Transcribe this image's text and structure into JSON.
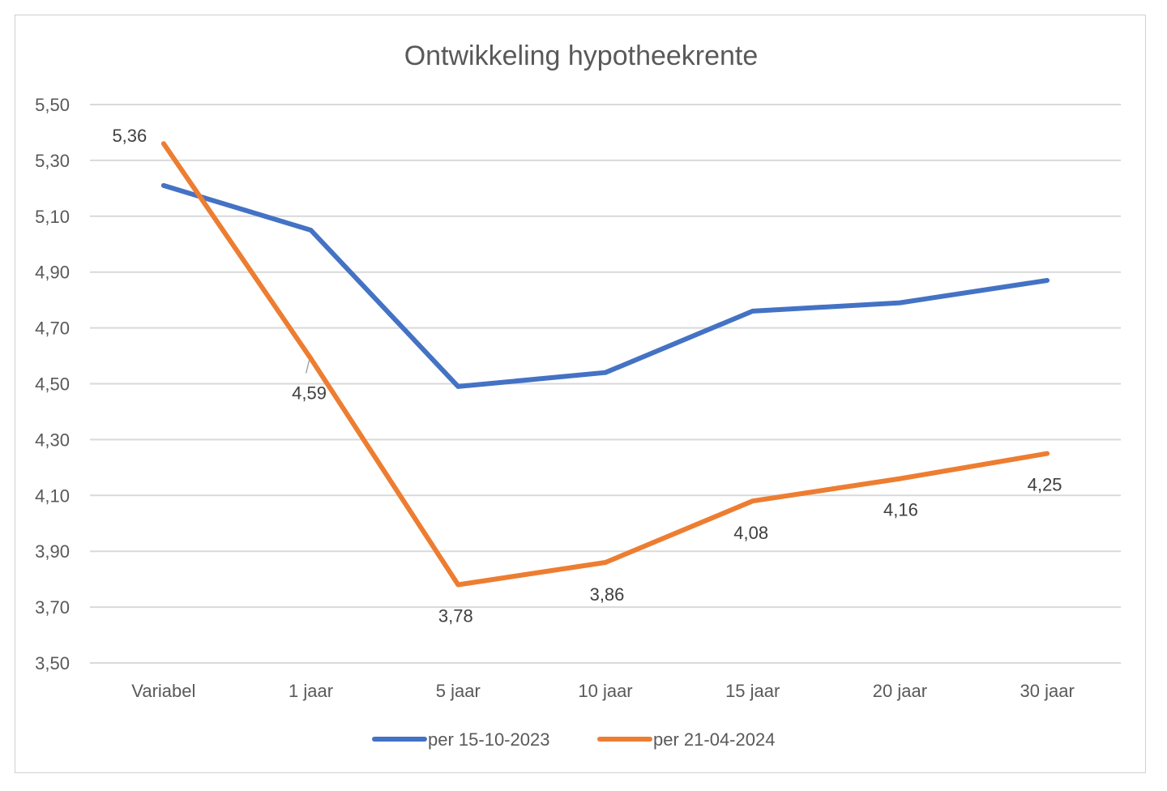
{
  "chart_data": {
    "type": "line",
    "title": "Ontwikkeling hypotheekrente",
    "categories": [
      "Variabel",
      "1 jaar",
      "5 jaar",
      "10 jaar",
      "15 jaar",
      "20 jaar",
      "30 jaar"
    ],
    "series": [
      {
        "name": "per 15-10-2023",
        "color": "#4472c4",
        "values": [
          5.21,
          5.05,
          4.49,
          4.54,
          4.76,
          4.79,
          4.87
        ],
        "data_labels": [
          "",
          "",
          "",
          "",
          "",
          "",
          ""
        ]
      },
      {
        "name": "per 21-04-2024",
        "color": "#ed7d31",
        "values": [
          5.36,
          4.59,
          3.78,
          3.86,
          4.08,
          4.16,
          4.25
        ],
        "data_labels": [
          "5,36",
          "4,59",
          "3,78",
          "3,86",
          "4,08",
          "4,16",
          "4,25"
        ]
      }
    ],
    "ylim": [
      3.5,
      5.5
    ],
    "yticks": [
      "3,50",
      "3,70",
      "3,90",
      "4,10",
      "4,30",
      "4,50",
      "4,70",
      "4,90",
      "5,10",
      "5,30",
      "5,50"
    ],
    "grid": true,
    "legend": "bottom"
  }
}
